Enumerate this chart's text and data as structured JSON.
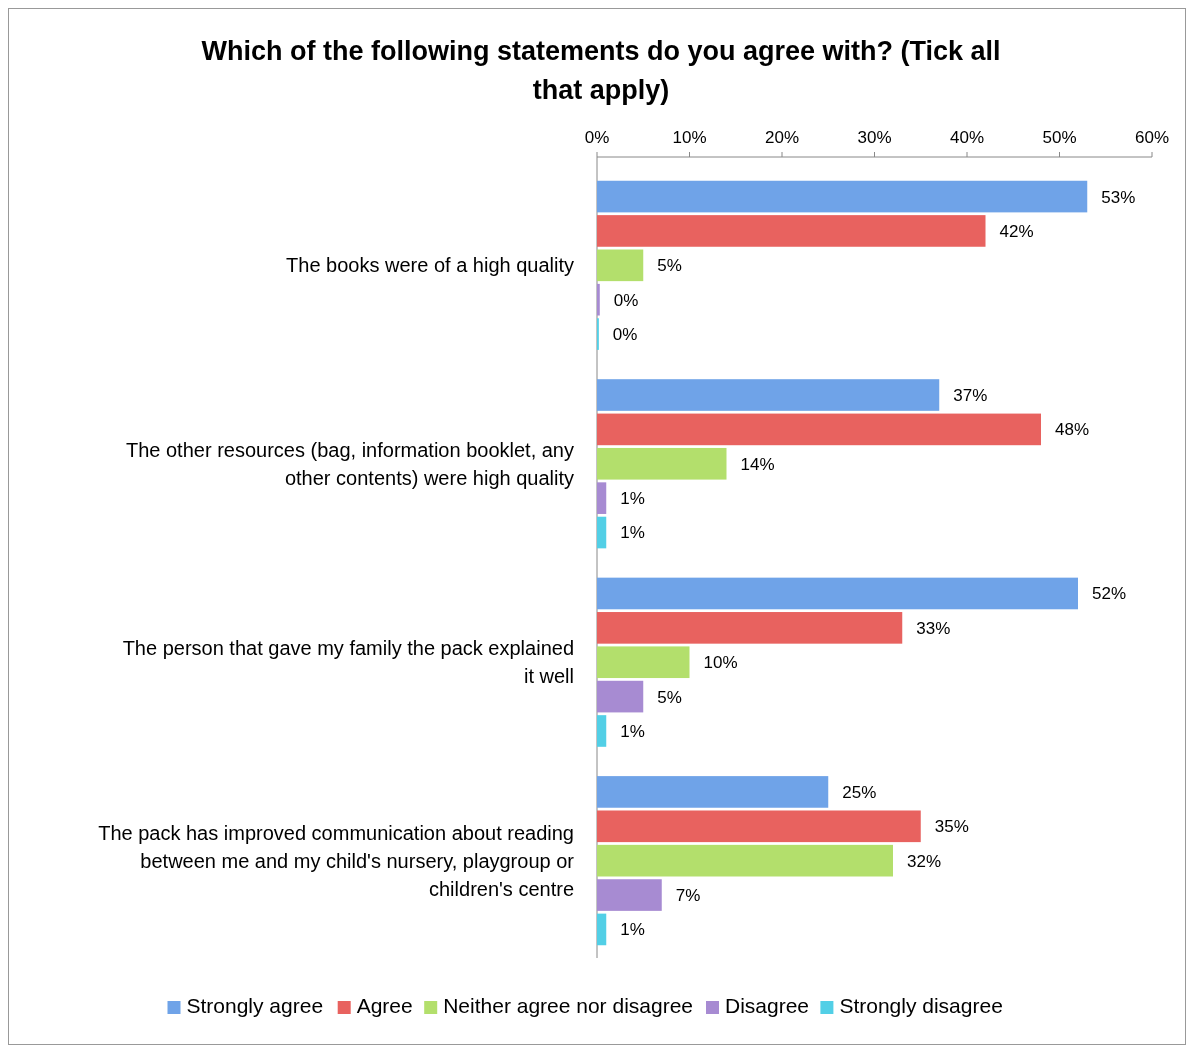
{
  "chart_data": {
    "type": "bar",
    "orientation": "horizontal",
    "title": "Which of the following statements do you agree with? (Tick all that apply)",
    "categories": [
      "The books were of a high quality",
      "The other resources (bag, information booklet, any other contents) were high quality",
      "The person that gave my family the pack explained it well",
      "The pack has improved communication about reading between me and my child's nursery, playgroup or children's centre"
    ],
    "series": [
      {
        "name": "Strongly agree",
        "color": "#6fa3e8",
        "values": [
          53,
          37,
          52,
          25
        ],
        "value_labels": [
          "53%",
          "37%",
          "52%",
          "25%"
        ]
      },
      {
        "name": "Agree",
        "color": "#e8625f",
        "values": [
          42,
          48,
          33,
          35
        ],
        "value_labels": [
          "42%",
          "48%",
          "33%",
          "35%"
        ]
      },
      {
        "name": "Neither agree nor disagree",
        "color": "#b3df6c",
        "values": [
          5,
          14,
          10,
          32
        ],
        "value_labels": [
          "5%",
          "14%",
          "10%",
          "32%"
        ]
      },
      {
        "name": "Disagree",
        "color": "#a78bd2",
        "values": [
          0.3,
          1,
          5,
          7
        ],
        "value_labels": [
          "0%",
          "1%",
          "5%",
          "7%"
        ]
      },
      {
        "name": "Strongly disagree",
        "color": "#52cfe6",
        "values": [
          0.2,
          1,
          1,
          1
        ],
        "value_labels": [
          "0%",
          "1%",
          "1%",
          "1%"
        ]
      }
    ],
    "xlim": [
      0,
      60
    ],
    "xticks": [
      {
        "value": 0,
        "label": "0%"
      },
      {
        "value": 10,
        "label": "10%"
      },
      {
        "value": 20,
        "label": "20%"
      },
      {
        "value": 30,
        "label": "30%"
      },
      {
        "value": 40,
        "label": "40%"
      },
      {
        "value": 50,
        "label": "50%"
      },
      {
        "value": 60,
        "label": "60%"
      }
    ],
    "legend": "bottom",
    "grid": false
  }
}
